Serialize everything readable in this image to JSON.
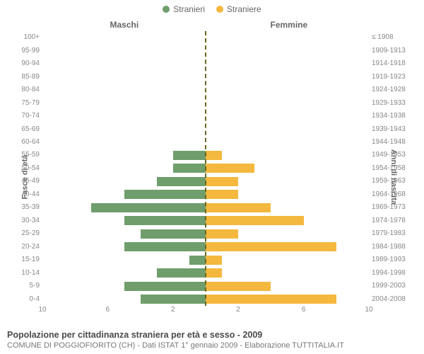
{
  "chart": {
    "type": "population-pyramid",
    "legend": [
      {
        "label": "Stranieri",
        "color": "#6f9e6c"
      },
      {
        "label": "Straniere",
        "color": "#f4b83f"
      }
    ],
    "columns": {
      "left": "Maschi",
      "right": "Femmine"
    },
    "y_left_title": "Fasce di età",
    "y_right_title": "Anni di nascita",
    "age_groups": [
      "100+",
      "95-99",
      "90-94",
      "85-89",
      "80-84",
      "75-79",
      "70-74",
      "65-69",
      "60-64",
      "55-59",
      "50-54",
      "45-49",
      "40-44",
      "35-39",
      "30-34",
      "25-29",
      "20-24",
      "15-19",
      "10-14",
      "5-9",
      "0-4"
    ],
    "birth_years": [
      "≤ 1908",
      "1909-1913",
      "1914-1918",
      "1919-1923",
      "1924-1928",
      "1929-1933",
      "1934-1938",
      "1939-1943",
      "1944-1948",
      "1949-1953",
      "1954-1958",
      "1959-1963",
      "1964-1968",
      "1969-1973",
      "1974-1978",
      "1979-1983",
      "1984-1988",
      "1989-1993",
      "1994-1998",
      "1999-2003",
      "2004-2008"
    ],
    "male": [
      0,
      0,
      0,
      0,
      0,
      0,
      0,
      0,
      0,
      2,
      2,
      3,
      5,
      7,
      5,
      4,
      5,
      1,
      3,
      5,
      4
    ],
    "female": [
      0,
      0,
      0,
      0,
      0,
      0,
      0,
      0,
      0,
      1,
      3,
      2,
      2,
      4,
      6,
      2,
      8,
      1,
      1,
      4,
      8
    ],
    "xmax": 10,
    "xticks": [
      10,
      6,
      2,
      2,
      6,
      10
    ],
    "bar_color_left": "#6f9e6c",
    "bar_color_right": "#f4b83f",
    "center_line_color": "#6b6720",
    "background": "#ffffff"
  },
  "caption": {
    "title": "Popolazione per cittadinanza straniera per età e sesso - 2009",
    "subtitle": "COMUNE DI POGGIOFIORITO (CH) - Dati ISTAT 1° gennaio 2009 - Elaborazione TUTTITALIA.IT"
  }
}
